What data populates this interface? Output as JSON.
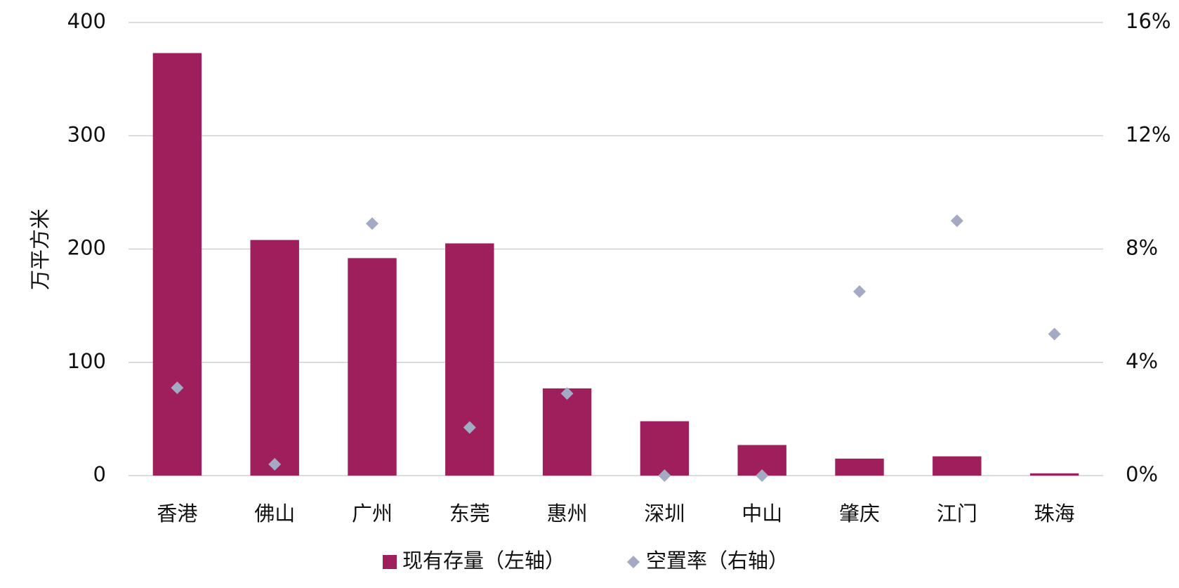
{
  "chart_data": {
    "type": "bar",
    "y_label": "万平方米",
    "categories": [
      "香港",
      "佛山",
      "广州",
      "东莞",
      "惠州",
      "深圳",
      "中山",
      "肇庆",
      "江门",
      "珠海"
    ],
    "series": [
      {
        "name": "现有存量（左轴）",
        "type": "bar",
        "color": "#9e1f5c",
        "values": [
          373,
          208,
          192,
          205,
          77,
          48,
          27,
          15,
          17,
          2
        ]
      },
      {
        "name": "空置率（右轴）",
        "type": "scatter",
        "axis": "y2",
        "color": "#a4a9c4",
        "values": [
          3.1,
          0.4,
          8.9,
          1.7,
          2.9,
          0,
          0,
          6.5,
          9.0,
          5.0
        ]
      }
    ],
    "ylim": [
      0,
      400
    ],
    "yticks": [
      0,
      100,
      200,
      300,
      400
    ],
    "y2lim": [
      0,
      16
    ],
    "y2ticks": [
      {
        "value": 0,
        "label": "0%"
      },
      {
        "value": 4,
        "label": "4%"
      },
      {
        "value": 8,
        "label": "8%"
      },
      {
        "value": 12,
        "label": "12%"
      },
      {
        "value": 16,
        "label": "16%"
      }
    ],
    "grid": true,
    "legend": "bottom"
  }
}
